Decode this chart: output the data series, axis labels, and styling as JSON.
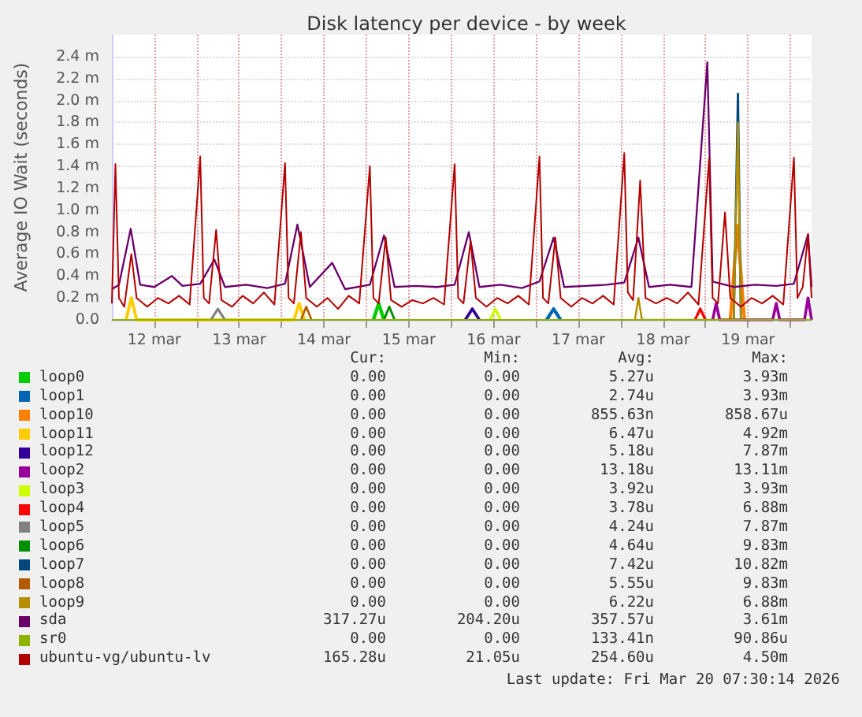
{
  "chart_data": {
    "type": "line",
    "title": "Disk latency per device - by week",
    "ylabel": "Average IO Wait (seconds)",
    "grid": true,
    "marker": "none",
    "legend": "bottom",
    "xlim": [
      "2026-03-12T00:00",
      "2026-03-20T06:00"
    ],
    "xticks": [
      {
        "value": "2026-03-12T12:00",
        "label": "12 mar"
      },
      {
        "value": "2026-03-13T00:00",
        "label": null
      },
      {
        "value": "2026-03-13T12:00",
        "label": "13 mar"
      },
      {
        "value": "2026-03-14T00:00",
        "label": null
      },
      {
        "value": "2026-03-14T12:00",
        "label": "14 mar"
      },
      {
        "value": "2026-03-15T00:00",
        "label": null
      },
      {
        "value": "2026-03-15T12:00",
        "label": "15 mar"
      },
      {
        "value": "2026-03-16T00:00",
        "label": null
      },
      {
        "value": "2026-03-16T12:00",
        "label": "16 mar"
      },
      {
        "value": "2026-03-17T00:00",
        "label": null
      },
      {
        "value": "2026-03-17T12:00",
        "label": "17 mar"
      },
      {
        "value": "2026-03-18T00:00",
        "label": null
      },
      {
        "value": "2026-03-18T12:00",
        "label": "18 mar"
      },
      {
        "value": "2026-03-19T00:00",
        "label": null
      },
      {
        "value": "2026-03-19T12:00",
        "label": "19 mar"
      },
      {
        "value": "2026-03-20T00:00",
        "label": null
      }
    ],
    "ylim": [
      0,
      2.6
    ],
    "yticks": [
      {
        "value": 0,
        "label": "0.0"
      },
      {
        "value": 0.2,
        "label": "0.2 m"
      },
      {
        "value": 0.4,
        "label": "0.4 m"
      },
      {
        "value": 0.6,
        "label": "0.6 m"
      },
      {
        "value": 0.8,
        "label": "0.8 m"
      },
      {
        "value": 1.0,
        "label": "1.0 m"
      },
      {
        "value": 1.2,
        "label": "1.2 m"
      },
      {
        "value": 1.4,
        "label": "1.4 m"
      },
      {
        "value": 1.6,
        "label": "1.6 m"
      },
      {
        "value": 1.8,
        "label": "1.8 m"
      },
      {
        "value": 2.0,
        "label": "2.0 m"
      },
      {
        "value": 2.2,
        "label": "2.2 m"
      },
      {
        "value": 2.4,
        "label": "2.4 m"
      }
    ],
    "series": [
      {
        "name": "loop0",
        "color": "#00cc00",
        "x": [
          "2026-03-15T02:00",
          "2026-03-15T03:30",
          "2026-03-15T05:00"
        ],
        "values": [
          0,
          0.15,
          0
        ]
      },
      {
        "name": "loop1",
        "color": "#0066b3",
        "x": [
          "2026-03-17T03:00",
          "2026-03-17T05:00",
          "2026-03-17T07:00"
        ],
        "values": [
          0,
          0.1,
          0
        ]
      },
      {
        "name": "loop10",
        "color": "#ff8000",
        "x": [
          "2026-03-19T07:00",
          "2026-03-19T09:00",
          "2026-03-19T11:00"
        ],
        "values": [
          0,
          0.86,
          0
        ]
      },
      {
        "name": "loop11",
        "color": "#ffcc00",
        "x": [
          "2026-03-12T04:00",
          "2026-03-12T05:30",
          "2026-03-12T07:00",
          "2026-03-14T03:30",
          "2026-03-14T05:00",
          "2026-03-14T06:30"
        ],
        "values": [
          0,
          0.2,
          0,
          0,
          0.15,
          0
        ]
      },
      {
        "name": "loop12",
        "color": "#330099",
        "x": [
          "2026-03-16T04:00",
          "2026-03-16T06:00",
          "2026-03-16T08:00"
        ],
        "values": [
          0,
          0.1,
          0
        ]
      },
      {
        "name": "loop2",
        "color": "#990099",
        "x": [
          "2026-03-19T02:00",
          "2026-03-19T03:00",
          "2026-03-19T04:00",
          "2026-03-19T19:00",
          "2026-03-19T20:00",
          "2026-03-19T21:00",
          "2026-03-20T04:00",
          "2026-03-20T05:00",
          "2026-03-20T06:00"
        ],
        "values": [
          0,
          0.15,
          0,
          0,
          0.15,
          0,
          0,
          0.2,
          0
        ]
      },
      {
        "name": "loop3",
        "color": "#ccff00",
        "x": [
          "2026-03-16T11:00",
          "2026-03-16T12:30",
          "2026-03-16T14:00"
        ],
        "values": [
          0,
          0.1,
          0
        ]
      },
      {
        "name": "loop4",
        "color": "#ff0000",
        "x": [
          "2026-03-18T21:00",
          "2026-03-18T22:30",
          "2026-03-19T00:00"
        ],
        "values": [
          0,
          0.1,
          0
        ]
      },
      {
        "name": "loop5",
        "color": "#808080",
        "x": [
          "2026-03-13T04:00",
          "2026-03-13T06:00",
          "2026-03-13T08:00"
        ],
        "values": [
          0,
          0.1,
          0
        ]
      },
      {
        "name": "loop6",
        "color": "#008f00",
        "x": [
          "2026-03-15T05:00",
          "2026-03-15T06:30",
          "2026-03-15T08:00"
        ],
        "values": [
          0,
          0.12,
          0
        ]
      },
      {
        "name": "loop7",
        "color": "#00487d",
        "x": [
          "2026-03-19T08:00",
          "2026-03-19T09:10",
          "2026-03-19T10:00"
        ],
        "values": [
          0,
          2.06,
          0
        ]
      },
      {
        "name": "loop8",
        "color": "#b35a00",
        "x": [
          "2026-03-14T05:30",
          "2026-03-14T07:00",
          "2026-03-14T08:30"
        ],
        "values": [
          0,
          0.12,
          0
        ]
      },
      {
        "name": "loop9",
        "color": "#b38f00",
        "x": [
          "2026-03-18T04:00",
          "2026-03-18T05:00",
          "2026-03-18T06:00",
          "2026-03-19T08:00",
          "2026-03-19T09:10",
          "2026-03-19T10:00"
        ],
        "values": [
          0,
          0.2,
          0,
          0,
          1.8,
          0
        ]
      },
      {
        "name": "sda",
        "color": "#6b006b",
        "x": [
          "2026-03-12T00:00",
          "2026-03-12T02:00",
          "2026-03-12T05:20",
          "2026-03-12T08:00",
          "2026-03-12T12:00",
          "2026-03-12T17:00",
          "2026-03-12T20:00",
          "2026-03-13T01:00",
          "2026-03-13T05:00",
          "2026-03-13T08:00",
          "2026-03-13T14:00",
          "2026-03-13T20:00",
          "2026-03-14T01:00",
          "2026-03-14T04:30",
          "2026-03-14T08:00",
          "2026-03-14T14:20",
          "2026-03-14T18:00",
          "2026-03-15T01:00",
          "2026-03-15T05:00",
          "2026-03-15T08:00",
          "2026-03-15T14:00",
          "2026-03-15T20:00",
          "2026-03-16T01:00",
          "2026-03-16T05:00",
          "2026-03-16T08:00",
          "2026-03-16T14:00",
          "2026-03-16T20:00",
          "2026-03-17T01:00",
          "2026-03-17T05:00",
          "2026-03-17T08:00",
          "2026-03-17T14:00",
          "2026-03-17T20:00",
          "2026-03-18T01:00",
          "2026-03-18T05:00",
          "2026-03-18T08:00",
          "2026-03-18T14:00",
          "2026-03-18T20:00",
          "2026-03-19T00:30",
          "2026-03-19T02:00",
          "2026-03-19T08:00",
          "2026-03-19T14:00",
          "2026-03-19T20:00",
          "2026-03-20T01:00",
          "2026-03-20T05:00",
          "2026-03-20T06:00"
        ],
        "values": [
          0.28,
          0.32,
          0.83,
          0.32,
          0.3,
          0.4,
          0.31,
          0.33,
          0.55,
          0.3,
          0.32,
          0.29,
          0.33,
          0.87,
          0.3,
          0.52,
          0.28,
          0.32,
          0.77,
          0.3,
          0.31,
          0.3,
          0.32,
          0.8,
          0.3,
          0.32,
          0.29,
          0.35,
          0.75,
          0.3,
          0.31,
          0.32,
          0.34,
          0.75,
          0.3,
          0.32,
          0.3,
          2.35,
          0.35,
          0.3,
          0.32,
          0.31,
          0.33,
          0.78,
          0.3
        ]
      },
      {
        "name": "sr0",
        "color": "#8fb300",
        "x": [
          "2026-03-12T00:00",
          "2026-03-20T06:00"
        ],
        "values": [
          0,
          0
        ]
      },
      {
        "name": "ubuntu-vg/ubuntu-lv",
        "color": "#b30000",
        "x": [
          "2026-03-12T00:00",
          "2026-03-12T01:00",
          "2026-03-12T02:00",
          "2026-03-12T03:30",
          "2026-03-12T05:30",
          "2026-03-12T07:00",
          "2026-03-12T10:00",
          "2026-03-12T13:00",
          "2026-03-12T16:00",
          "2026-03-12T19:00",
          "2026-03-12T22:00",
          "2026-03-13T01:00",
          "2026-03-13T02:00",
          "2026-03-13T03:30",
          "2026-03-13T05:30",
          "2026-03-13T07:00",
          "2026-03-13T10:00",
          "2026-03-13T13:00",
          "2026-03-13T16:00",
          "2026-03-13T19:00",
          "2026-03-13T22:00",
          "2026-03-14T01:00",
          "2026-03-14T02:00",
          "2026-03-14T03:30",
          "2026-03-14T05:30",
          "2026-03-14T07:00",
          "2026-03-14T10:00",
          "2026-03-14T13:00",
          "2026-03-14T16:00",
          "2026-03-14T19:00",
          "2026-03-14T22:00",
          "2026-03-15T01:00",
          "2026-03-15T02:00",
          "2026-03-15T03:30",
          "2026-03-15T05:30",
          "2026-03-15T07:00",
          "2026-03-15T10:00",
          "2026-03-15T13:00",
          "2026-03-15T16:00",
          "2026-03-15T19:00",
          "2026-03-15T22:00",
          "2026-03-16T01:00",
          "2026-03-16T02:00",
          "2026-03-16T03:30",
          "2026-03-16T05:30",
          "2026-03-16T07:00",
          "2026-03-16T10:00",
          "2026-03-16T13:00",
          "2026-03-16T16:00",
          "2026-03-16T19:00",
          "2026-03-16T22:00",
          "2026-03-17T01:00",
          "2026-03-17T02:00",
          "2026-03-17T03:30",
          "2026-03-17T05:30",
          "2026-03-17T07:00",
          "2026-03-17T10:00",
          "2026-03-17T13:00",
          "2026-03-17T16:00",
          "2026-03-17T19:00",
          "2026-03-17T22:00",
          "2026-03-18T01:00",
          "2026-03-18T02:00",
          "2026-03-18T03:30",
          "2026-03-18T05:30",
          "2026-03-18T07:00",
          "2026-03-18T10:00",
          "2026-03-18T13:00",
          "2026-03-18T16:00",
          "2026-03-18T19:00",
          "2026-03-18T22:00",
          "2026-03-19T01:00",
          "2026-03-19T02:00",
          "2026-03-19T03:30",
          "2026-03-19T05:30",
          "2026-03-19T07:00",
          "2026-03-19T10:00",
          "2026-03-19T13:00",
          "2026-03-19T16:00",
          "2026-03-19T19:00",
          "2026-03-19T22:00",
          "2026-03-20T01:00",
          "2026-03-20T02:00",
          "2026-03-20T03:30",
          "2026-03-20T05:00",
          "2026-03-20T06:00"
        ],
        "values": [
          0.15,
          1.42,
          0.2,
          0.12,
          0.6,
          0.2,
          0.12,
          0.2,
          0.15,
          0.22,
          0.14,
          1.49,
          0.2,
          0.15,
          0.82,
          0.18,
          0.12,
          0.22,
          0.15,
          0.25,
          0.14,
          1.43,
          0.2,
          0.15,
          0.8,
          0.2,
          0.12,
          0.2,
          0.1,
          0.22,
          0.15,
          1.4,
          0.2,
          0.15,
          0.75,
          0.18,
          0.12,
          0.18,
          0.15,
          0.2,
          0.14,
          1.42,
          0.2,
          0.15,
          0.72,
          0.2,
          0.12,
          0.2,
          0.15,
          0.22,
          0.14,
          1.49,
          0.2,
          0.15,
          0.75,
          0.2,
          0.12,
          0.2,
          0.15,
          0.22,
          0.14,
          1.52,
          0.25,
          0.18,
          1.27,
          0.2,
          0.15,
          0.2,
          0.15,
          0.25,
          0.14,
          1.47,
          0.2,
          0.15,
          0.98,
          0.2,
          0.12,
          0.2,
          0.15,
          0.22,
          0.14,
          1.48,
          0.2,
          0.3,
          0.78,
          0.2
        ]
      }
    ],
    "annotations": [
      "Cur:",
      "Min:",
      "Avg:",
      "Max:",
      "0.00",
      "0.00",
      "5.27u",
      "3.93m",
      "0.00",
      "0.00",
      "2.74u",
      "3.93m",
      "0.00",
      "0.00",
      "855.63n",
      "858.67u",
      "0.00",
      "0.00",
      "6.47u",
      "4.92m",
      "0.00",
      "0.00",
      "5.18u",
      "7.87m",
      "0.00",
      "0.00",
      "13.18u",
      "13.11m",
      "0.00",
      "0.00",
      "3.92u",
      "3.93m",
      "0.00",
      "0.00",
      "3.78u",
      "6.88m",
      "0.00",
      "0.00",
      "4.24u",
      "7.87m",
      "0.00",
      "0.00",
      "4.64u",
      "9.83m",
      "0.00",
      "0.00",
      "7.42u",
      "10.82m",
      "0.00",
      "0.00",
      "5.55u",
      "9.83m",
      "0.00",
      "0.00",
      "6.22u",
      "6.88m",
      "317.27u",
      "204.20u",
      "357.57u",
      "3.61m",
      "0.00",
      "0.00",
      "133.41n",
      "90.86u",
      "165.28u",
      "21.05u",
      "254.60u",
      "4.50m",
      "Last update: Fri Mar 20 07:30:14 2026"
    ]
  }
}
